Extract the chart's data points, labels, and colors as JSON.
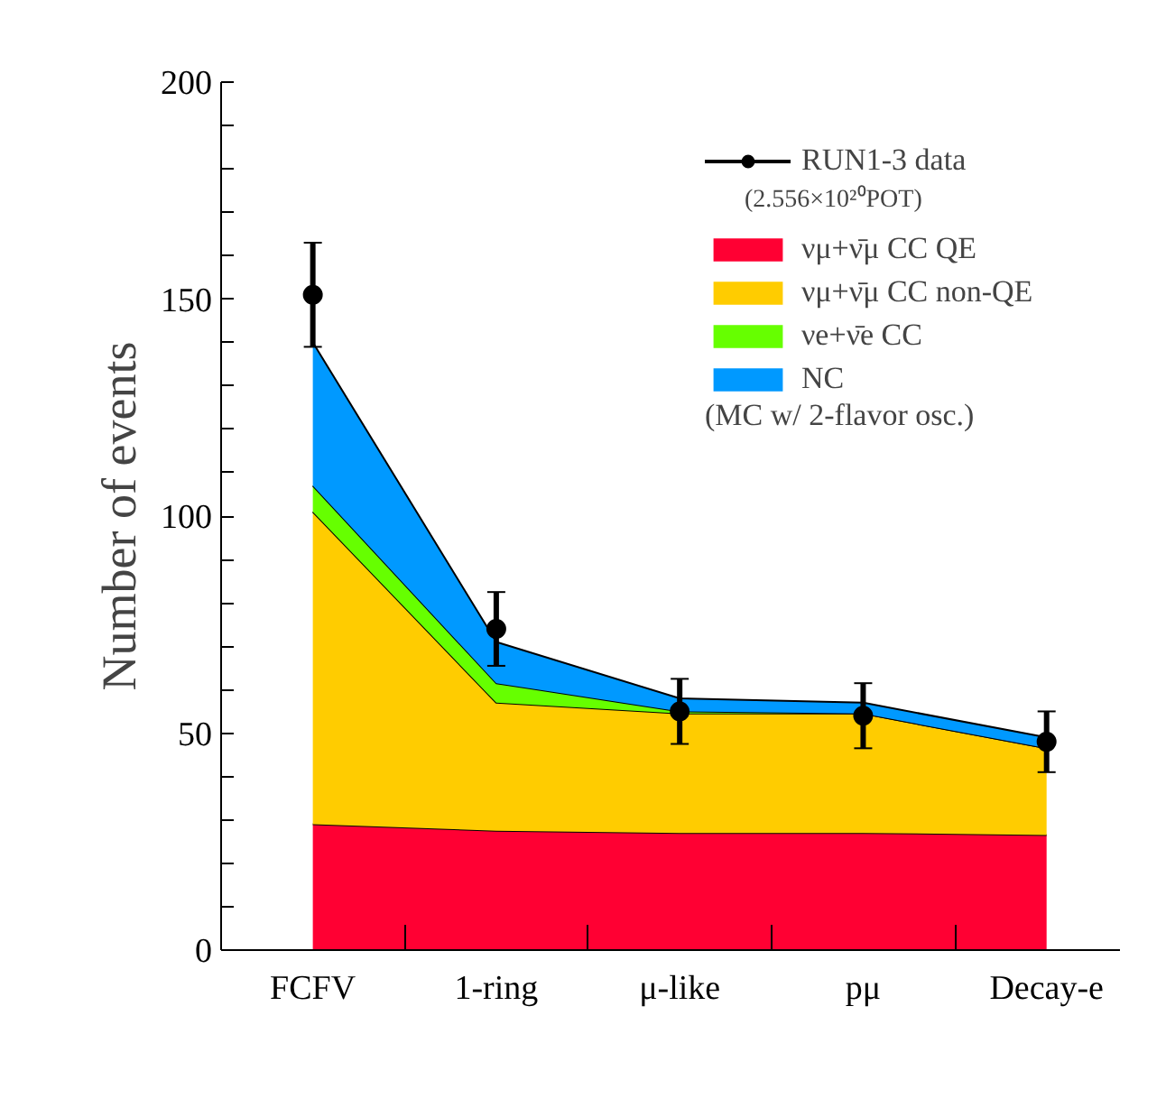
{
  "chart_data": {
    "type": "area",
    "stacked": true,
    "ylabel": "Number of events",
    "categories": [
      "FCFV",
      "1-ring",
      "μ-like",
      "pμ",
      "Decay-e"
    ],
    "ylim": [
      0,
      200
    ],
    "yticks": [
      0,
      50,
      100,
      150,
      200
    ],
    "grid": false,
    "legend": "top right",
    "series": [
      {
        "name": "νμ+ν̄μ CC QE",
        "color": "#ff0033",
        "values": [
          29,
          27.5,
          27,
          27,
          26.5
        ]
      },
      {
        "name": "νμ+ν̄μ CC non-QE",
        "color": "#ffcc00",
        "values": [
          72,
          29.5,
          27.5,
          27.5,
          20
        ]
      },
      {
        "name": "νe+ν̄e CC",
        "color": "#66ff00",
        "values": [
          6,
          4.5,
          0.5,
          0,
          0
        ]
      },
      {
        "name": "NC",
        "color": "#0099ff",
        "values": [
          33,
          9.5,
          3,
          2.5,
          2.5
        ]
      },
      {
        "name": "RUN1-3 data",
        "type": "scatter",
        "marker": "circle",
        "color": "#000000",
        "values": [
          151,
          74,
          55,
          54,
          48
        ],
        "errors": [
          12,
          8.5,
          7.5,
          7.5,
          7
        ]
      }
    ],
    "annotations": [
      "(2.556×10²⁰POT)",
      "(MC w/ 2-flavor osc.)"
    ]
  }
}
